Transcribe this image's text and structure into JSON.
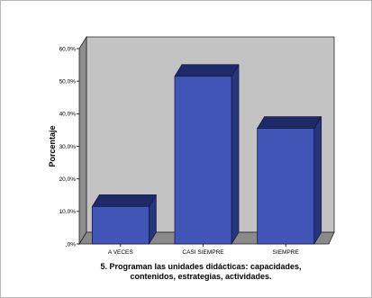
{
  "chart_data": {
    "type": "bar",
    "style": "3d",
    "categories": [
      "A VECES",
      "CASI SIEMPRE",
      "SIEMPRE"
    ],
    "values": [
      11.5,
      51.5,
      35.5
    ],
    "ylabel": "Porcentaje",
    "xlabel_lines": [
      "5. Programan las unidades didácticas: capacidades,",
      "contenidos, estrategias, actividades."
    ],
    "ylim": [
      0,
      60
    ],
    "yticks": [
      0,
      10,
      20,
      30,
      40,
      50,
      60
    ],
    "ytick_labels": [
      ",0%",
      "10,0%",
      "20,0%",
      "30,0%",
      "40,0%",
      "50,0%",
      "60,0%"
    ],
    "grid": false,
    "legend": "none"
  },
  "colors": {
    "bar_front": "#4055b5",
    "bar_side": "#27357c",
    "bar_top": "#1e2a68",
    "bar_edge": "#141c4a",
    "back_wall": "#c3c3c3",
    "side_wall": "#8e8e8e",
    "floor": "#8a8a8a",
    "wall_edge": "#222222"
  }
}
